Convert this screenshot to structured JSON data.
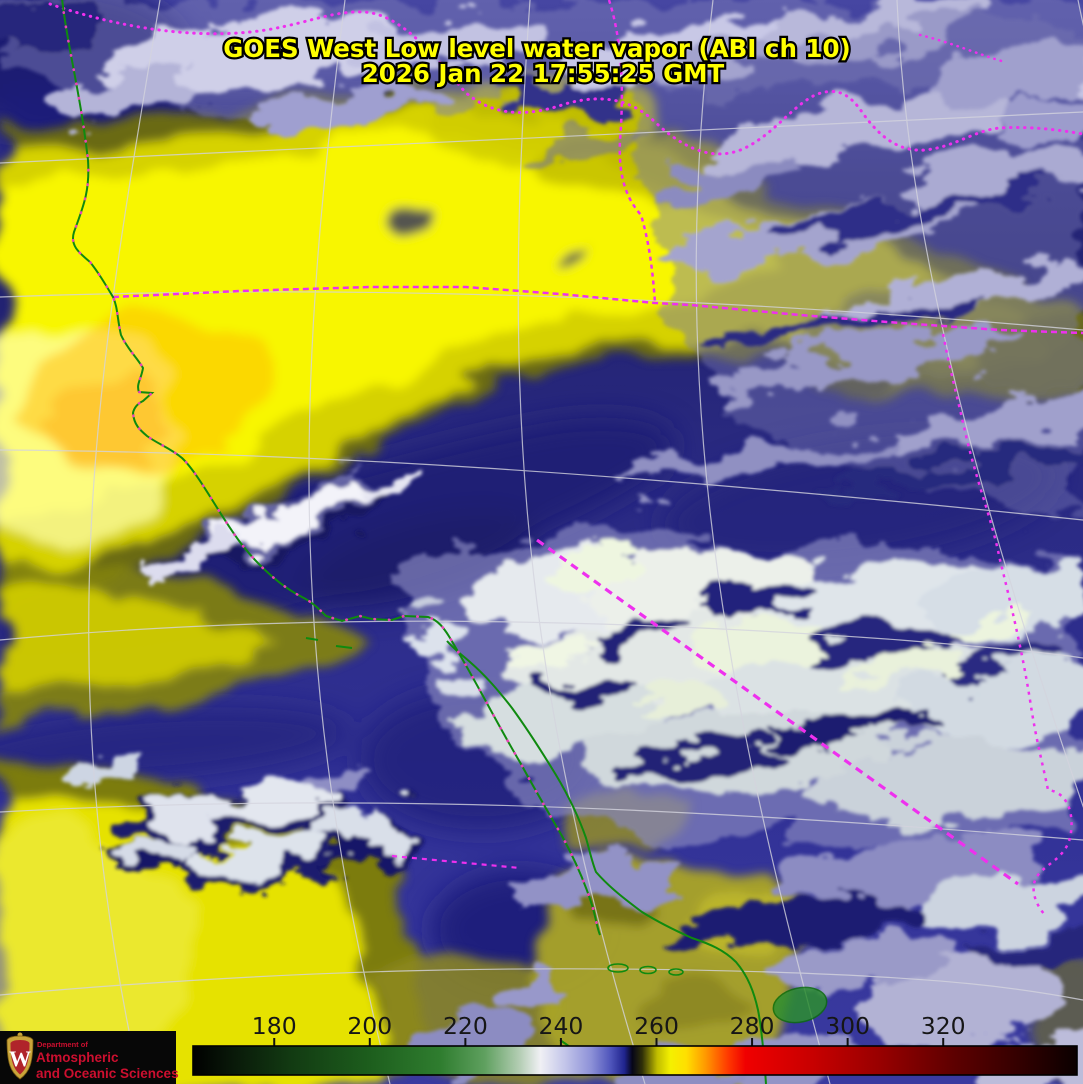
{
  "title": {
    "line1": "GOES West Low level water vapor (ABI ch 10)",
    "line2": "2026 Jan 22  17:55:25 GMT",
    "text_color": "#ffff00"
  },
  "colorbar": {
    "labels": [
      "180",
      "200",
      "220",
      "240",
      "260",
      "280",
      "300",
      "320"
    ],
    "values": [
      180,
      200,
      220,
      240,
      260,
      280,
      300,
      320
    ],
    "scale_min": 163,
    "scale_max": 348,
    "label_color": "#161616",
    "border_color": "#000000",
    "gradient": [
      {
        "p": 0.0,
        "c": "#000000"
      },
      {
        "p": 0.04,
        "c": "#081608"
      },
      {
        "p": 0.11,
        "c": "#123a12"
      },
      {
        "p": 0.2,
        "c": "#1d5e1d"
      },
      {
        "p": 0.28,
        "c": "#2f7d2f"
      },
      {
        "p": 0.33,
        "c": "#5fa05f"
      },
      {
        "p": 0.37,
        "c": "#b5ceb5"
      },
      {
        "p": 0.393,
        "c": "#f0f0f4"
      },
      {
        "p": 0.42,
        "c": "#c4c6ea"
      },
      {
        "p": 0.45,
        "c": "#8e92d8"
      },
      {
        "p": 0.472,
        "c": "#5056bc"
      },
      {
        "p": 0.488,
        "c": "#20248e"
      },
      {
        "p": 0.497,
        "c": "#060618"
      },
      {
        "p": 0.508,
        "c": "#2e2e08"
      },
      {
        "p": 0.525,
        "c": "#c0bc00"
      },
      {
        "p": 0.54,
        "c": "#f4f000"
      },
      {
        "p": 0.558,
        "c": "#ffdf00"
      },
      {
        "p": 0.58,
        "c": "#ff9800"
      },
      {
        "p": 0.605,
        "c": "#ff3a00"
      },
      {
        "p": 0.625,
        "c": "#f00000"
      },
      {
        "p": 0.7,
        "c": "#c80000"
      },
      {
        "p": 0.78,
        "c": "#960000"
      },
      {
        "p": 0.86,
        "c": "#5e0000"
      },
      {
        "p": 0.935,
        "c": "#330000"
      },
      {
        "p": 1.0,
        "c": "#0a0000"
      }
    ]
  },
  "logo": {
    "line1": "Department of",
    "line2": "Atmospheric",
    "line3": "and Oceanic Sciences",
    "monogram": "W",
    "background": "#070707",
    "text_color": "#cc0f2f",
    "shield_red": "#b0242a",
    "shield_gold": "#caa53a"
  },
  "overlay_colors": {
    "graticule": "#d4d4de",
    "coastline": "#0f8a0f",
    "state_borders": "#ee30ee",
    "coast_markers": "#ff3cc8"
  },
  "imagery_palette": {
    "moist_navy": "#23237d",
    "cloud_lavender": "#9a9ace",
    "cloud_white": "#eef2ec",
    "dry_yellow": "#f6f200",
    "dry_orange": "#ffb400",
    "dry_olive": "#82820f",
    "land_dull_yellow": "#a9a326"
  }
}
